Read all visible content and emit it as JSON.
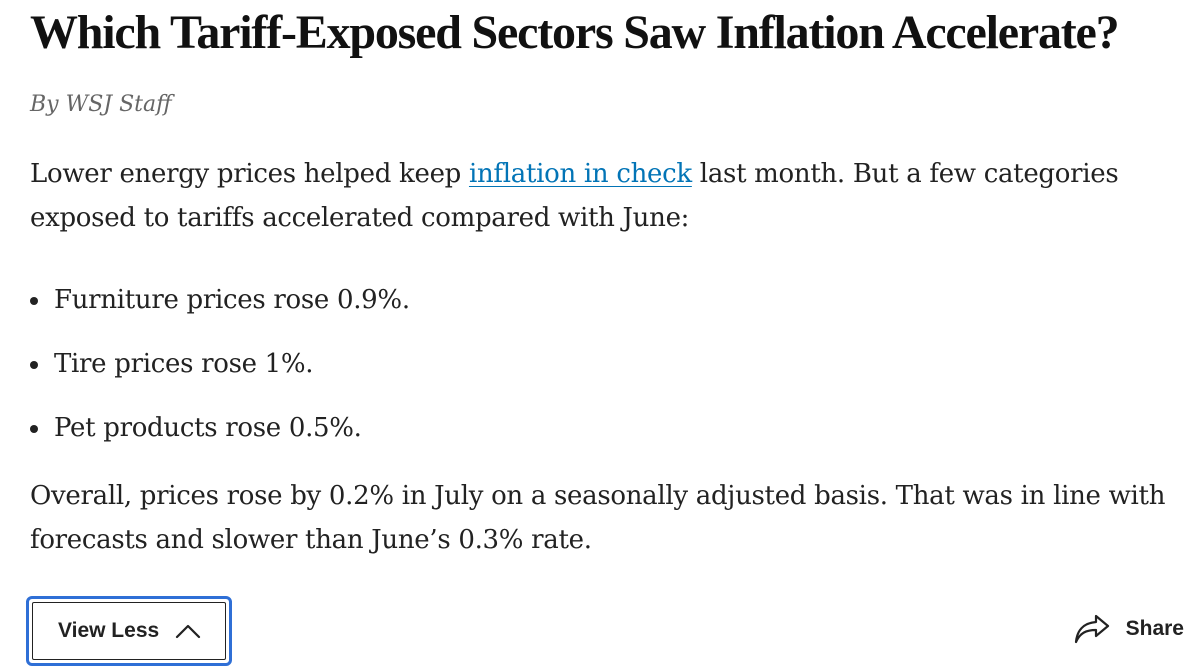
{
  "article": {
    "headline": "Which Tariff-Exposed Sectors Saw Inflation Accelerate?",
    "byline": "By WSJ Staff",
    "intro": {
      "before_link": "Lower energy prices helped keep ",
      "link_text": "inflation in check",
      "after_link": " last month. But a few categories exposed to tariffs accelerated compared with June:"
    },
    "bullets": [
      "Furniture prices rose 0.9%.",
      "Tire prices rose 1%.",
      "Pet products rose 0.5%."
    ],
    "closing": "Overall, prices rose by 0.2% in July on a seasonally adjusted basis. That was in line with forecasts and slower than June’s 0.3% rate."
  },
  "actions": {
    "view_less_label": "View Less",
    "share_label": "Share"
  },
  "icons": {
    "toggle": "chevron-up-icon",
    "share": "share-arrow-icon"
  },
  "colors": {
    "link": "#0274b6",
    "focus_ring": "#2f6fd6"
  }
}
